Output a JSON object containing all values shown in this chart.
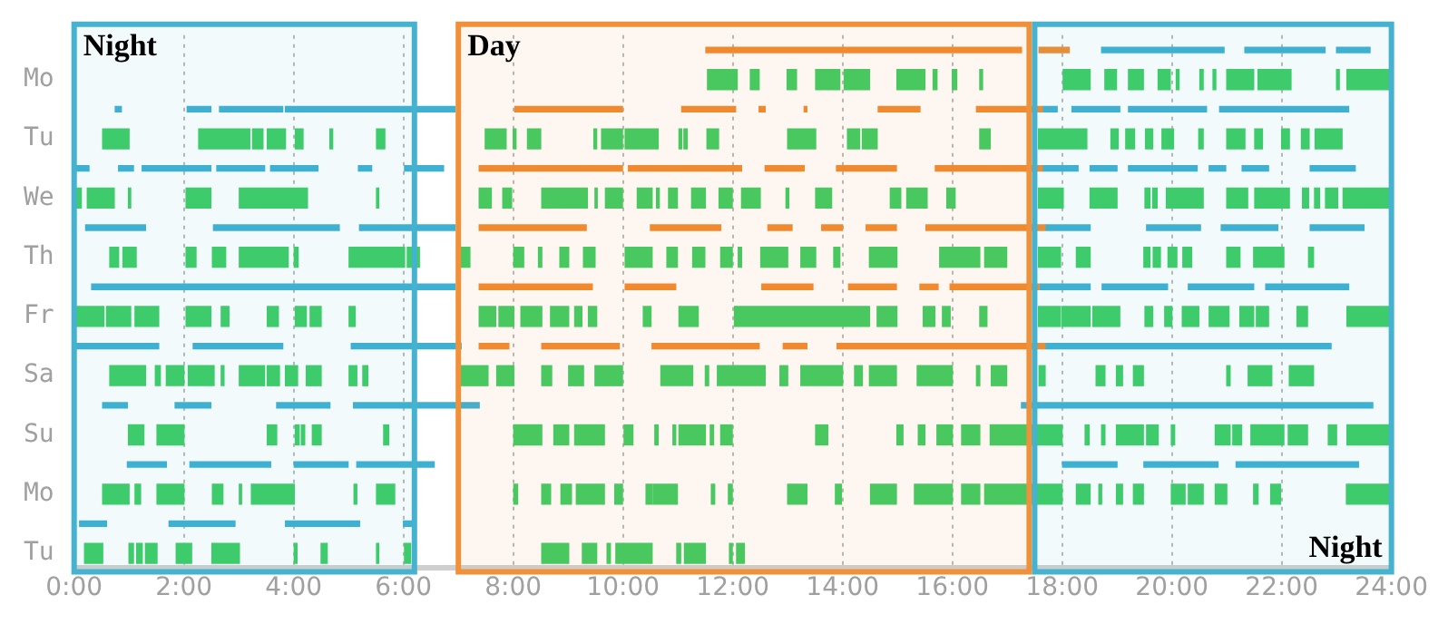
{
  "chart_data": {
    "type": "bar",
    "orientation": "horizontal",
    "grid": "x",
    "categories": [
      null,
      "Mo",
      null,
      "Tu",
      null,
      "We",
      null,
      "Th",
      null,
      "Fr",
      null,
      "Sa",
      null,
      "Su",
      null,
      "Mo",
      null,
      "Tu"
    ],
    "xlim": [
      0,
      24
    ],
    "xticks": [
      {
        "value": 0,
        "label": "0:00"
      },
      {
        "value": 2,
        "label": "2:00"
      },
      {
        "value": 4,
        "label": "4:00"
      },
      {
        "value": 6,
        "label": "6:00"
      },
      {
        "value": 8,
        "label": "8:00"
      },
      {
        "value": 10,
        "label": "10:00"
      },
      {
        "value": 12,
        "label": "12:00"
      },
      {
        "value": 14,
        "label": "14:00"
      },
      {
        "value": 16,
        "label": "16:00"
      },
      {
        "value": 18,
        "label": "18:00"
      },
      {
        "value": 20,
        "label": "20:00"
      },
      {
        "value": 22,
        "label": "22:00"
      },
      {
        "value": 24,
        "label": "24:00"
      }
    ],
    "bands": [
      {
        "axis": "x",
        "from": 0,
        "to": 6.2,
        "label": "Night",
        "color": "#45b3d0"
      },
      {
        "axis": "x",
        "from": 7.0,
        "to": 17.4,
        "label": "Day",
        "color": "#f0913a"
      },
      {
        "axis": "x",
        "from": 17.5,
        "to": 24,
        "label": "Night",
        "color": "#45b3d0"
      }
    ],
    "series": [
      {
        "base": [
          11.51,
          11.54,
          null,
          0.52,
          0.03,
          0.03,
          0.21,
          0.65,
          0.32,
          0.03,
          0,
          0.65,
          0.52,
          0.99,
          0.97,
          0.52,
          0.1,
          null
        ],
        "values": [
          5.75,
          0.54,
          null,
          0.48,
          0.24,
          0.1,
          1.09,
          0.16,
          6.62,
          0.51,
          1.54,
          0.65,
          0.45,
          0.28,
          0.71,
          0.48,
          0.49,
          null
        ],
        "colors": [
          "#f28a2e",
          "#3dcd64",
          null,
          "#3dcd64",
          "#3eb0d2",
          "#3dcd64",
          "#3eb0d2",
          "#3dcd64",
          "#3eb0d2",
          "#3dcd64",
          "#3eb0d2",
          "#3dcd64",
          "#3eb0d2",
          "#3dcd64",
          "#3eb0d2",
          "#3dcd64",
          "#3eb0d2",
          null
        ]
      },
      {
        "base": [
          17.58,
          12.32,
          0.75,
          2.27,
          0.81,
          0.24,
          2.54,
          0.89,
          7.38,
          0.59,
          2.17,
          1.48,
          1.84,
          1.51,
          2.11,
          1.11,
          1.73,
          0.19
        ],
        "values": [
          0.55,
          0.16,
          0.11,
          0.93,
          0.27,
          0.49,
          2.29,
          0.24,
          2.06,
          0.44,
          1.63,
          0.09,
          0.65,
          0.49,
          1.47,
          0.1,
          1.2,
          0.33
        ],
        "colors": [
          "#f28a2e",
          "#3dcd64",
          "#3eb0d2",
          "#3dcd64",
          "#3eb0d2",
          "#3dcd64",
          "#3eb0d2",
          "#3dcd64",
          "#f28a2e",
          "#3dcd64",
          "#3eb0d2",
          "#3dcd64",
          "#3eb0d2",
          "#3dcd64",
          "#3eb0d2",
          "#3dcd64",
          "#3eb0d2",
          "#3dcd64"
        ]
      },
      {
        "base": [
          18.72,
          12.99,
          2.06,
          3.25,
          1.24,
          0.99,
          5.2,
          2.04,
          10.04,
          1.11,
          5.05,
          1.68,
          3.69,
          3.52,
          4.01,
          1.51,
          3.85,
          1.0
        ],
        "values": [
          2.23,
          0.17,
          0.43,
          0.19,
          1.25,
          0.04,
          1.74,
          0.18,
          0.92,
          0.43,
          2.0,
          0.32,
          0.97,
          0.17,
          0.98,
          0.49,
          1.35,
          0.08
        ],
        "colors": [
          "#3eb0d2",
          "#3dcd64",
          "#3eb0d2",
          "#3dcd64",
          "#3eb0d2",
          "#3dcd64",
          "#3eb0d2",
          "#3dcd64",
          "#f28a2e",
          "#3dcd64",
          "#3eb0d2",
          "#3dcd64",
          "#3eb0d2",
          "#3dcd64",
          "#3eb0d2",
          "#3dcd64",
          "#3eb0d2",
          "#3dcd64"
        ]
      },
      {
        "base": [
          21.33,
          13.51,
          2.65,
          3.52,
          2.6,
          2.04,
          7.38,
          2.52,
          12.53,
          2.04,
          7.38,
          2.08,
          5.09,
          4.03,
          5.15,
          2.52,
          6.0,
          1.14
        ],
        "values": [
          1.46,
          0.44,
          1.15,
          0.33,
          0.87,
          0.45,
          1.95,
          0.24,
          0.93,
          0.45,
          0.54,
          0.47,
          2.29,
          0.07,
          1.41,
          0.19,
          0.19,
          0.1
        ],
        "colors": [
          "#3eb0d2",
          "#3dcd64",
          "#3eb0d2",
          "#3dcd64",
          "#3eb0d2",
          "#3dcd64",
          "#f28a2e",
          "#3dcd64",
          "#f28a2e",
          "#3dcd64",
          "#f28a2e",
          "#3dcd64",
          "#3eb0d2",
          "#3dcd64",
          "#3eb0d2",
          "#3dcd64",
          "#3eb0d2",
          "#3dcd64"
        ]
      },
      {
        "base": [
          23.0,
          14.03,
          3.85,
          4.03,
          3.58,
          3.01,
          10.5,
          3.01,
          14.11,
          2.68,
          8.52,
          2.68,
          17.26,
          4.14,
          18.01,
          3.01,
          null,
          1.3
        ],
        "values": [
          0.61,
          0.46,
          3.09,
          0.14,
          0.86,
          1.24,
          1.28,
          0.89,
          0.87,
          0.14,
          1.41,
          0.05,
          6.4,
          0.06,
          0.99,
          0.04,
          null,
          0.21
        ],
        "colors": [
          "#3eb0d2",
          "#3dcd64",
          "#3eb0d2",
          "#3dcd64",
          "#3eb0d2",
          "#3dcd64",
          "#f28a2e",
          "#3dcd64",
          "#f28a2e",
          "#3dcd64",
          "#f28a2e",
          "#3dcd64",
          "#3eb0d2",
          "#3dcd64",
          "#3eb0d2",
          "#3dcd64",
          null,
          "#3dcd64"
        ]
      },
      {
        "base": [
          null,
          14.99,
          8.03,
          4.66,
          5.18,
          5.51,
          12.64,
          4.01,
          15.41,
          3.52,
          10.53,
          3.01,
          null,
          4.34,
          19.49,
          3.23,
          null,
          1.86
        ],
        "values": [
          null,
          0.51,
          1.96,
          0.05,
          0.24,
          0.04,
          0.44,
          0.07,
          0.33,
          0.2,
          1.95,
          0.46,
          null,
          0.16,
          1.35,
          0.78,
          null,
          0.28
        ],
        "colors": [
          null,
          "#3dcd64",
          "#f28a2e",
          "#3dcd64",
          "#3eb0d2",
          "#3dcd64",
          "#f28a2e",
          "#3dcd64",
          "#f28a2e",
          "#3dcd64",
          "#f28a2e",
          "#3dcd64",
          null,
          "#3dcd64",
          "#3eb0d2",
          "#3dcd64",
          null,
          "#3dcd64"
        ]
      },
      {
        "base": [
          null,
          15.65,
          11.07,
          5.51,
          6.02,
          7.38,
          13.62,
          5.01,
          15.96,
          4.03,
          12.92,
          3.52,
          null,
          5.64,
          21.17,
          5.1,
          null,
          2.51
        ],
        "values": [
          null,
          0.07,
          0.98,
          0.15,
          0.71,
          0.22,
          0.38,
          1.01,
          1.62,
          0.2,
          0.43,
          0.22,
          null,
          0.09,
          2.23,
          0.05,
          null,
          0.5
        ],
        "colors": [
          null,
          "#3dcd64",
          "#f28a2e",
          "#3dcd64",
          "#3eb0d2",
          "#3dcd64",
          "#f28a2e",
          "#3dcd64",
          "#f28a2e",
          "#3dcd64",
          "#f28a2e",
          "#3dcd64",
          null,
          "#3dcd64",
          "#3eb0d2",
          "#3dcd64",
          null,
          "#3dcd64"
        ]
      },
      {
        "base": [
          null,
          16.0,
          12.48,
          7.49,
          7.38,
          7.81,
          14.43,
          6.07,
          17.6,
          4.3,
          13.9,
          3.85,
          null,
          8.01,
          null,
          5.51,
          null,
          4.01
        ],
        "values": [
          null,
          0.08,
          0.11,
          0.38,
          2.61,
          0.16,
          0.55,
          0.22,
          0.91,
          0.2,
          3.79,
          0.22,
          null,
          0.51,
          null,
          0.33,
          null,
          0.05
        ],
        "colors": [
          null,
          "#3dcd64",
          "#f28a2e",
          "#3dcd64",
          "#f28a2e",
          "#3dcd64",
          "#f28a2e",
          "#3dcd64",
          "#3eb0d2",
          "#3dcd64",
          "#f28a2e",
          "#3dcd64",
          null,
          "#3dcd64",
          null,
          "#3dcd64",
          null,
          "#3dcd64"
        ]
      },
      {
        "base": [
          null,
          16.5,
          13.3,
          8.0,
          10.1,
          8.52,
          15.52,
          7.05,
          18.73,
          5.01,
          17.7,
          4.23,
          null,
          8.74,
          null,
          8.01,
          null,
          4.5
        ],
        "values": [
          null,
          0.05,
          0.05,
          0.05,
          2.06,
          0.83,
          2.17,
          0.16,
          1.19,
          0.11,
          5.2,
          0.27,
          null,
          0.27,
          null,
          0.07,
          null,
          0.11
        ],
        "colors": [
          null,
          "#3dcd64",
          "#f28a2e",
          "#3dcd64",
          "#f28a2e",
          "#3dcd64",
          "#f28a2e",
          "#3dcd64",
          "#3eb0d2",
          "#3dcd64",
          "#3eb0d2",
          "#3dcd64",
          null,
          "#3dcd64",
          null,
          "#3dcd64",
          null,
          "#3dcd64"
        ]
      },
      {
        "base": [
          null,
          18.02,
          14.65,
          8.26,
          12.59,
          9.49,
          17.7,
          8.01,
          20.3,
          7.38,
          null,
          5.01,
          null,
          9.12,
          null,
          8.52,
          null,
          5.51
        ],
        "values": [
          null,
          0.49,
          0.76,
          0.24,
          0.71,
          0.04,
          0.81,
          0.18,
          1.19,
          0.3,
          null,
          0.14,
          null,
          0.54,
          null,
          0.16,
          null,
          0.04
        ],
        "colors": [
          null,
          "#3dcd64",
          "#f28a2e",
          "#3dcd64",
          "#f28a2e",
          "#3dcd64",
          "#3eb0d2",
          "#3dcd64",
          "#3eb0d2",
          "#3dcd64",
          null,
          "#3dcd64",
          null,
          "#3dcd64",
          null,
          "#3dcd64",
          null,
          "#3dcd64"
        ]
      },
      {
        "base": [
          null,
          18.78,
          16.44,
          9.47,
          13.89,
          9.68,
          19.54,
          8.46,
          21.71,
          7.74,
          null,
          5.26,
          null,
          10.02,
          null,
          8.87,
          null,
          6.02
        ],
        "values": [
          null,
          0.21,
          1.2,
          0.05,
          1.09,
          0.31,
          0.98,
          0.06,
          1.51,
          0.27,
          null,
          0.09,
          null,
          0.16,
          null,
          0.19,
          null,
          0.11
        ],
        "colors": [
          null,
          "#3dcd64",
          "#f28a2e",
          "#3dcd64",
          "#f28a2e",
          "#3dcd64",
          "#3eb0d2",
          "#3dcd64",
          "#3eb0d2",
          "#3dcd64",
          null,
          "#3dcd64",
          null,
          "#3dcd64",
          null,
          "#3dcd64",
          null,
          "#3dcd64"
        ]
      },
      {
        "base": [
          null,
          19.21,
          17.65,
          9.61,
          15.69,
          10.26,
          20.9,
          8.85,
          null,
          8.14,
          null,
          7.05,
          null,
          10.58,
          null,
          9.15,
          null,
          8.52
        ],
        "values": [
          null,
          0.27,
          0.26,
          0.38,
          1.95,
          0.27,
          1.03,
          0.16,
          null,
          0.38,
          null,
          0.49,
          null,
          0.06,
          null,
          0.51,
          null,
          0.49
        ],
        "colors": [
          null,
          "#3dcd64",
          "#3eb0d2",
          "#3dcd64",
          "#f28a2e",
          "#3dcd64",
          "#3eb0d2",
          "#3dcd64",
          null,
          "#3dcd64",
          null,
          "#3dcd64",
          null,
          "#3dcd64",
          null,
          "#3dcd64",
          null,
          "#3dcd64"
        ]
      },
      {
        "base": [
          null,
          19.75,
          18.18,
          10.04,
          17.65,
          10.61,
          22.52,
          9.28,
          null,
          8.68,
          null,
          7.7,
          null,
          10.91,
          null,
          9.85,
          null,
          9.26
        ],
        "values": [
          null,
          0.22,
          0.87,
          0.6,
          0.64,
          0.05,
          0.98,
          0.21,
          null,
          0.33,
          null,
          0.31,
          null,
          0.05,
          null,
          0.14,
          null,
          0.26
        ],
        "colors": [
          null,
          "#3dcd64",
          "#3eb0d2",
          "#3dcd64",
          "#3eb0d2",
          "#3dcd64",
          "#3eb0d2",
          "#3dcd64",
          null,
          "#3dcd64",
          null,
          "#3dcd64",
          null,
          "#3dcd64",
          null,
          "#3dcd64",
          null,
          "#3dcd64"
        ]
      },
      {
        "base": [
          null,
          20.08,
          19.21,
          11.02,
          18.51,
          10.83,
          null,
          10.04,
          null,
          9.12,
          null,
          8.52,
          null,
          11.02,
          null,
          10.42,
          null,
          9.71
        ],
        "values": [
          null,
          0.05,
          1.42,
          0.05,
          0.49,
          0.16,
          null,
          0.49,
          null,
          0.13,
          null,
          0.18,
          null,
          0.48,
          null,
          0.11,
          null,
          0.06
        ],
        "colors": [
          null,
          "#3dcd64",
          "#3eb0d2",
          "#3dcd64",
          "#3eb0d2",
          "#3dcd64",
          null,
          "#3dcd64",
          null,
          "#3dcd64",
          null,
          "#3dcd64",
          null,
          "#3dcd64",
          null,
          "#3dcd64",
          null,
          "#3dcd64"
        ]
      },
      {
        "base": [
          null,
          20.51,
          20.87,
          11.11,
          19.21,
          11.25,
          null,
          10.8,
          null,
          9.37,
          null,
          9.01,
          null,
          11.59,
          null,
          10.55,
          null,
          9.87
        ],
        "values": [
          null,
          0.06,
          2.35,
          0.06,
          1.25,
          0.25,
          null,
          0.19,
          null,
          0.15,
          null,
          0.27,
          null,
          0.06,
          null,
          0.44,
          null,
          0.66
        ],
        "colors": [
          null,
          "#3dcd64",
          "#3eb0d2",
          "#3dcd64",
          "#3eb0d2",
          "#3dcd64",
          null,
          "#3dcd64",
          null,
          "#3dcd64",
          null,
          "#3dcd64",
          null,
          "#3dcd64",
          null,
          "#3dcd64",
          null,
          "#3dcd64"
        ]
      },
      {
        "base": [
          null,
          20.75,
          null,
          11.53,
          20.68,
          11.75,
          null,
          11.27,
          null,
          10.37,
          null,
          9.49,
          null,
          11.78,
          null,
          11.61,
          null,
          10.98
        ],
        "values": [
          null,
          0.05,
          null,
          0.21,
          0.3,
          0.24,
          null,
          0.22,
          null,
          0.14,
          null,
          0.5,
          null,
          0.21,
          null,
          0.06,
          null,
          0.07
        ],
        "colors": [
          null,
          "#3dcd64",
          null,
          "#3dcd64",
          "#3eb0d2",
          "#3dcd64",
          null,
          "#3dcd64",
          null,
          "#3dcd64",
          null,
          "#3dcd64",
          null,
          "#3dcd64",
          null,
          "#3dcd64",
          null,
          "#3dcd64"
        ]
      },
      {
        "base": [
          null,
          21.0,
          null,
          13.0,
          21.28,
          12.16,
          null,
          11.78,
          null,
          11.02,
          null,
          10.69,
          null,
          13.51,
          null,
          11.92,
          null,
          11.12
        ],
        "values": [
          null,
          0.49,
          null,
          0.51,
          0.48,
          0.34,
          null,
          0.21,
          null,
          0.35,
          null,
          0.58,
          null,
          0.22,
          null,
          0.07,
          null,
          0.38
        ],
        "colors": [
          null,
          "#3dcd64",
          null,
          "#3dcd64",
          "#3eb0d2",
          "#3dcd64",
          null,
          "#3dcd64",
          null,
          "#3dcd64",
          null,
          "#3dcd64",
          null,
          "#3dcd64",
          null,
          "#3dcd64",
          null,
          "#3dcd64"
        ]
      },
      {
        "base": [
          null,
          21.57,
          null,
          14.09,
          22.52,
          12.97,
          null,
          12.1,
          null,
          12.03,
          null,
          11.5,
          null,
          14.99,
          null,
          13.0,
          null,
          11.94
        ],
        "values": [
          null,
          0.6,
          null,
          0.22,
          0.82,
          0.05,
          null,
          0.06,
          null,
          2.46,
          null,
          0.06,
          null,
          0.11,
          null,
          0.35,
          null,
          0.05
        ],
        "colors": [
          null,
          "#3dcd64",
          null,
          "#3dcd64",
          "#3eb0d2",
          "#3dcd64",
          null,
          "#3dcd64",
          null,
          "#3dcd64",
          null,
          "#3dcd64",
          null,
          "#3dcd64",
          null,
          "#3dcd64",
          null,
          "#3dcd64"
        ]
      },
      {
        "base": [
          null,
          23.0,
          null,
          14.36,
          null,
          13.51,
          null,
          12.51,
          null,
          14.63,
          null,
          11.72,
          null,
          15.38,
          null,
          13.87,
          null,
          12.07
        ],
        "values": [
          null,
          0.05,
          null,
          0.27,
          null,
          0.29,
          null,
          0.49,
          null,
          0.36,
          null,
          0.87,
          null,
          0.12,
          null,
          0.11,
          null,
          0.14
        ],
        "colors": [
          null,
          "#3dcd64",
          null,
          "#3dcd64",
          null,
          "#3dcd64",
          null,
          "#3dcd64",
          null,
          "#3dcd64",
          null,
          "#3dcd64",
          null,
          "#3dcd64",
          null,
          "#3dcd64",
          null,
          "#3dcd64"
        ]
      },
      {
        "base": [
          null,
          23.19,
          null,
          16.5,
          null,
          14.87,
          null,
          13.24,
          null,
          15.47,
          null,
          12.86,
          null,
          15.72,
          null,
          14.51,
          null,
          null
        ],
        "values": [
          null,
          0.8,
          null,
          0.19,
          null,
          0.19,
          null,
          0.27,
          null,
          0.21,
          null,
          0.14,
          null,
          0.28,
          null,
          0.47,
          null,
          null
        ],
        "colors": [
          null,
          "#3dcd64",
          null,
          "#3dcd64",
          null,
          "#3dcd64",
          null,
          "#3dcd64",
          null,
          "#3dcd64",
          null,
          "#3dcd64",
          null,
          "#3dcd64",
          null,
          "#3dcd64",
          null,
          null
        ]
      },
      {
        "base": [
          null,
          null,
          null,
          17.57,
          null,
          15.17,
          null,
          13.84,
          null,
          15.82,
          null,
          13.24,
          null,
          16.17,
          null,
          15.31,
          null,
          null
        ],
        "values": [
          null,
          null,
          null,
          0.88,
          null,
          0.37,
          null,
          0.11,
          null,
          0.14,
          null,
          0.76,
          null,
          0.33,
          null,
          0.69,
          null,
          null
        ],
        "colors": [
          null,
          null,
          null,
          "#3dcd64",
          null,
          "#3dcd64",
          null,
          "#3dcd64",
          null,
          "#3dcd64",
          null,
          "#3dcd64",
          null,
          "#3dcd64",
          null,
          "#3dcd64",
          null,
          null
        ]
      },
      {
        "base": [
          null,
          null,
          null,
          18.89,
          null,
          15.9,
          null,
          14.49,
          null,
          16.5,
          null,
          14.22,
          null,
          16.69,
          null,
          16.17,
          null,
          null
        ],
        "values": [
          null,
          null,
          null,
          0.13,
          null,
          0.15,
          null,
          0.5,
          null,
          0.13,
          null,
          0.14,
          null,
          1.31,
          null,
          0.33,
          null,
          null
        ],
        "colors": [
          null,
          null,
          null,
          "#3dcd64",
          null,
          "#3dcd64",
          null,
          "#3dcd64",
          null,
          "#3dcd64",
          null,
          "#3dcd64",
          null,
          "#3dcd64",
          null,
          "#3dcd64",
          null,
          null
        ]
      },
      {
        "base": [
          null,
          null,
          null,
          19.16,
          null,
          17.57,
          null,
          15.77,
          null,
          17.57,
          null,
          14.49,
          null,
          18.42,
          null,
          16.59,
          null,
          null
        ],
        "values": [
          null,
          null,
          null,
          0.16,
          null,
          0.45,
          null,
          0.73,
          null,
          0.4,
          null,
          0.49,
          null,
          0.07,
          null,
          1.41,
          null,
          null
        ],
        "colors": [
          null,
          null,
          null,
          "#3dcd64",
          null,
          "#3dcd64",
          null,
          "#3dcd64",
          null,
          "#3dcd64",
          null,
          "#3dcd64",
          null,
          "#3dcd64",
          null,
          "#3dcd64",
          null,
          null
        ]
      },
      {
        "base": [
          null,
          null,
          null,
          19.52,
          null,
          18.51,
          null,
          16.59,
          null,
          18.0,
          null,
          15.36,
          null,
          18.72,
          null,
          18.26,
          null,
          null
        ],
        "values": [
          null,
          null,
          null,
          0.13,
          null,
          0.49,
          null,
          0.4,
          null,
          0.51,
          null,
          0.64,
          null,
          0.06,
          null,
          0.25,
          null,
          null
        ],
        "colors": [
          null,
          null,
          null,
          "#3dcd64",
          null,
          "#3dcd64",
          null,
          "#3dcd64",
          null,
          "#3dcd64",
          null,
          "#3dcd64",
          null,
          "#3dcd64",
          null,
          "#3dcd64",
          null,
          null
        ]
      },
      {
        "base": [
          null,
          null,
          null,
          19.82,
          null,
          19.51,
          null,
          17.57,
          null,
          18.56,
          null,
          16.44,
          null,
          18.99,
          null,
          18.67,
          null,
          null
        ],
        "values": [
          null,
          null,
          null,
          0.21,
          null,
          0.09,
          null,
          0.4,
          null,
          0.49,
          null,
          0.06,
          null,
          0.49,
          null,
          0.05,
          null,
          null
        ],
        "colors": [
          null,
          null,
          null,
          "#3dcd64",
          null,
          "#3dcd64",
          null,
          "#3dcd64",
          null,
          "#3dcd64",
          null,
          "#3dcd64",
          null,
          "#3dcd64",
          null,
          "#3dcd64",
          null,
          null
        ]
      },
      {
        "base": [
          null,
          null,
          null,
          20.49,
          null,
          19.65,
          null,
          18.26,
          null,
          19.51,
          null,
          16.71,
          null,
          19.54,
          null,
          18.99,
          null,
          null
        ],
        "values": [
          null,
          null,
          null,
          0.08,
          null,
          0.08,
          null,
          0.25,
          null,
          0.14,
          null,
          0.28,
          null,
          0.21,
          null,
          0.11,
          null,
          null
        ],
        "colors": [
          null,
          null,
          null,
          "#3dcd64",
          null,
          "#3dcd64",
          null,
          "#3dcd64",
          null,
          "#3dcd64",
          null,
          "#3dcd64",
          null,
          "#3dcd64",
          null,
          "#3dcd64",
          null,
          null
        ]
      },
      {
        "base": [
          null,
          null,
          null,
          21.0,
          null,
          19.9,
          null,
          19.49,
          null,
          19.87,
          null,
          17.58,
          null,
          19.99,
          null,
          19.3,
          null,
          null
        ],
        "values": [
          null,
          null,
          null,
          0.33,
          null,
          0.67,
          null,
          0.11,
          null,
          0.13,
          null,
          0.11,
          null,
          0.06,
          null,
          0.18,
          null,
          null
        ],
        "colors": [
          null,
          null,
          null,
          "#3dcd64",
          null,
          "#3dcd64",
          null,
          "#3dcd64",
          null,
          "#3dcd64",
          null,
          "#3dcd64",
          null,
          "#3dcd64",
          null,
          "#3dcd64",
          null,
          null
        ]
      },
      {
        "base": [
          null,
          null,
          null,
          21.51,
          null,
          21.0,
          null,
          19.66,
          null,
          20.19,
          null,
          18.62,
          null,
          20.79,
          null,
          19.99,
          null,
          null
        ],
        "values": [
          null,
          null,
          null,
          0.14,
          null,
          0.38,
          null,
          0.13,
          null,
          0.3,
          null,
          0.16,
          null,
          0.27,
          null,
          0.25,
          null,
          null
        ],
        "colors": [
          null,
          null,
          null,
          "#3dcd64",
          null,
          "#3dcd64",
          null,
          "#3dcd64",
          null,
          "#3dcd64",
          null,
          "#3dcd64",
          null,
          "#3dcd64",
          null,
          "#3dcd64",
          null,
          null
        ]
      },
      {
        "base": [
          null,
          null,
          null,
          22.0,
          null,
          21.51,
          null,
          19.93,
          null,
          20.68,
          null,
          18.99,
          null,
          21.11,
          null,
          20.3,
          null,
          null
        ],
        "values": [
          null,
          null,
          null,
          0.14,
          null,
          0.63,
          null,
          0.16,
          null,
          0.36,
          null,
          0.11,
          null,
          0.16,
          null,
          0.27,
          null,
          null
        ],
        "colors": [
          null,
          null,
          null,
          "#3dcd64",
          null,
          "#3dcd64",
          null,
          "#3dcd64",
          null,
          "#3dcd64",
          null,
          "#3dcd64",
          null,
          "#3dcd64",
          null,
          "#3dcd64",
          null,
          null
        ]
      },
      {
        "base": [
          null,
          null,
          null,
          22.36,
          null,
          22.38,
          null,
          20.2,
          null,
          21.24,
          null,
          19.3,
          null,
          21.44,
          null,
          20.79,
          null,
          null
        ],
        "values": [
          null,
          null,
          null,
          0.14,
          null,
          0.11,
          null,
          0.16,
          null,
          0.25,
          null,
          0.18,
          null,
          0.6,
          null,
          0.21,
          null,
          null
        ],
        "colors": [
          null,
          null,
          null,
          "#3dcd64",
          null,
          "#3dcd64",
          null,
          "#3dcd64",
          null,
          "#3dcd64",
          null,
          "#3dcd64",
          null,
          "#3dcd64",
          null,
          "#3dcd64",
          null,
          null
        ]
      },
      {
        "base": [
          null,
          null,
          null,
          22.61,
          null,
          22.6,
          null,
          21.0,
          null,
          21.54,
          null,
          21.0,
          null,
          22.12,
          null,
          21.49,
          null,
          null
        ],
        "values": [
          null,
          null,
          null,
          0.49,
          null,
          0.09,
          null,
          0.24,
          null,
          0.22,
          null,
          0.06,
          null,
          0.35,
          null,
          0.08,
          null,
          null
        ],
        "colors": [
          null,
          null,
          null,
          "#3dcd64",
          null,
          "#3dcd64",
          null,
          "#3dcd64",
          null,
          "#3dcd64",
          null,
          "#3dcd64",
          null,
          "#3dcd64",
          null,
          "#3dcd64",
          null,
          null
        ]
      },
      {
        "base": [
          null,
          null,
          null,
          null,
          null,
          22.8,
          null,
          21.49,
          null,
          22.28,
          null,
          21.39,
          null,
          22.85,
          null,
          21.8,
          null,
          null
        ],
        "values": [
          null,
          null,
          null,
          null,
          null,
          0.22,
          null,
          0.55,
          null,
          0.19,
          null,
          0.43,
          null,
          0.15,
          null,
          0.18,
          null,
          null
        ],
        "colors": [
          null,
          null,
          null,
          null,
          null,
          "#3dcd64",
          null,
          "#3dcd64",
          null,
          "#3dcd64",
          null,
          "#3dcd64",
          null,
          "#3dcd64",
          null,
          "#3dcd64",
          null,
          null
        ]
      },
      {
        "base": [
          null,
          null,
          null,
          null,
          null,
          23.12,
          null,
          22.49,
          null,
          23.19,
          null,
          22.14,
          null,
          23.19,
          null,
          23.18,
          null,
          null
        ],
        "values": [
          null,
          null,
          null,
          null,
          null,
          0.87,
          null,
          0.09,
          null,
          0.8,
          null,
          0.44,
          null,
          0.8,
          null,
          0.81,
          null,
          null
        ],
        "colors": [
          null,
          null,
          null,
          null,
          null,
          "#3dcd64",
          null,
          "#3dcd64",
          null,
          "#3dcd64",
          null,
          "#3dcd64",
          null,
          "#3dcd64",
          null,
          "#3dcd64",
          null,
          null
        ]
      }
    ]
  }
}
